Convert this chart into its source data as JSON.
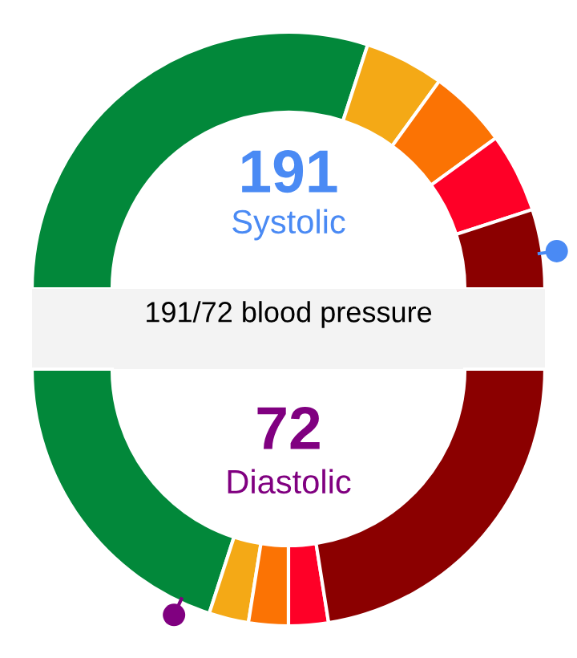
{
  "chart_data": [
    {
      "type": "donut",
      "title": "191/72 blood pressure",
      "annotations": [
        "191",
        "Systolic"
      ],
      "categories": [
        null,
        null,
        null,
        null,
        null
      ],
      "values": [
        60,
        10,
        10,
        10,
        10
      ],
      "colors": [
        "#02883a",
        "#f4a916",
        "#fb7304",
        "#fe0027",
        "#8b0000"
      ]
    },
    {
      "type": "donut",
      "annotations": [
        "72",
        "Diastolic"
      ],
      "categories": [
        null,
        null,
        null,
        null,
        null
      ],
      "values": [
        40,
        5,
        5,
        5,
        45
      ],
      "colors": [
        "#02883a",
        "#f4a916",
        "#fb7304",
        "#fe0027",
        "#8b0000"
      ]
    }
  ]
}
